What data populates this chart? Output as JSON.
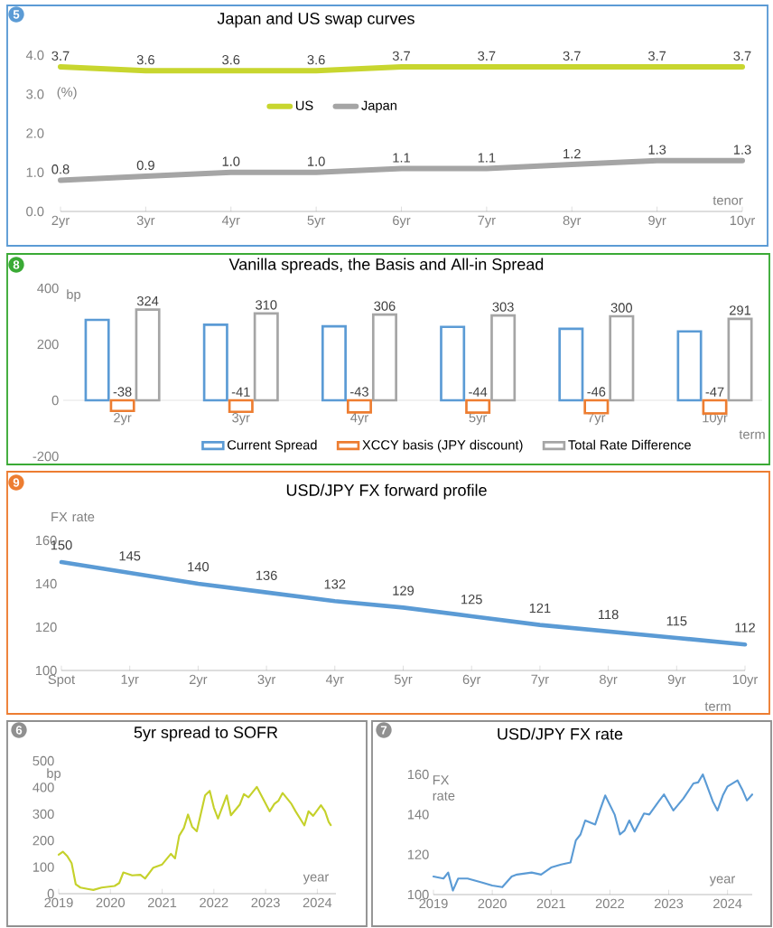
{
  "chart_data": [
    {
      "type": "line",
      "title": "Japan and US swap curves",
      "xlabel": "tenor",
      "ylabel": "(%)",
      "categories": [
        "2yr",
        "3yr",
        "4yr",
        "5yr",
        "6yr",
        "7yr",
        "8yr",
        "9yr",
        "10yr"
      ],
      "series": [
        {
          "name": "US",
          "color": "#c8d62f",
          "values": [
            3.7,
            3.6,
            3.6,
            3.6,
            3.7,
            3.7,
            3.7,
            3.7,
            3.7
          ],
          "value_labels": [
            "3.7",
            "3.6",
            "3.6",
            "3.6",
            "3.7",
            "3.7",
            "3.7",
            "3.7",
            "3.7"
          ]
        },
        {
          "name": "Japan",
          "color": "#a5a5a5",
          "values": [
            0.8,
            0.9,
            1.0,
            1.0,
            1.1,
            1.1,
            1.2,
            1.3,
            1.3
          ],
          "value_labels": [
            "0.8",
            "0.9",
            "1.0",
            "1.0",
            "1.1",
            "1.1",
            "1.2",
            "1.3",
            "1.3"
          ]
        }
      ],
      "ylim": [
        0,
        4
      ],
      "yticks": [
        {
          "value": 0,
          "label": "0.0"
        },
        {
          "value": 1,
          "label": "1.0"
        },
        {
          "value": 2,
          "label": "2.0"
        },
        {
          "value": 3,
          "label": "3.0"
        },
        {
          "value": 4,
          "label": "4.0"
        }
      ],
      "legend": "top",
      "annotations": [
        "5"
      ]
    },
    {
      "type": "bar",
      "title": "Vanilla spreads, the Basis and All-in Spread",
      "xlabel": "term",
      "ylabel": "bp",
      "categories": [
        "2yr",
        "3yr",
        "4yr",
        "5yr",
        "7yr",
        "10yr"
      ],
      "series": [
        {
          "name": "Current Spread",
          "color": "#5b9bd5",
          "values": [
            287,
            270,
            264,
            262,
            255,
            246
          ]
        },
        {
          "name": "XCCY basis (JPY discount)",
          "color": "#ed7d31",
          "values": [
            -38,
            -41,
            -43,
            -44,
            -46,
            -47
          ],
          "value_labels": [
            "-38",
            "-41",
            "-43",
            "-44",
            "-46",
            "-47"
          ]
        },
        {
          "name": "Total Rate Difference",
          "color": "#a5a5a5",
          "values": [
            324,
            310,
            306,
            303,
            300,
            291
          ],
          "value_labels": [
            "324",
            "310",
            "306",
            "303",
            "300",
            "291"
          ]
        }
      ],
      "ylim": [
        -200,
        400
      ],
      "yticks": [
        -200,
        0,
        200,
        400
      ],
      "legend": "bottom",
      "annotations": [
        "8"
      ]
    },
    {
      "type": "line",
      "title": "USD/JPY FX forward profile",
      "xlabel": "term",
      "ylabel": "FX rate",
      "categories": [
        "Spot",
        "1yr",
        "2yr",
        "3yr",
        "4yr",
        "5yr",
        "6yr",
        "7yr",
        "8yr",
        "9yr",
        "10yr"
      ],
      "color": "#5b9bd5",
      "values": [
        150,
        145,
        140,
        136,
        132,
        129,
        125,
        121,
        118,
        115,
        112
      ],
      "ylim": [
        100,
        160
      ],
      "yticks": [
        100,
        120,
        140,
        160
      ],
      "data_labels": true,
      "annotations": [
        "9"
      ]
    },
    {
      "type": "line",
      "title": "5yr spread to SOFR",
      "xlabel": "year",
      "ylabel": "bp",
      "color": "#c5d12b",
      "x": [
        "2019-01",
        "2019-02",
        "2019-03",
        "2019-04",
        "2019-05",
        "2019-06",
        "2019-08",
        "2019-09",
        "2019-11",
        "2020-02",
        "2020-03",
        "2020-04",
        "2020-06",
        "2020-08",
        "2020-09",
        "2020-11",
        "2021-01",
        "2021-03",
        "2021-04",
        "2021-05",
        "2021-06",
        "2021-07",
        "2021-08",
        "2021-09",
        "2021-11",
        "2021-12",
        "2022-01",
        "2022-02",
        "2022-04",
        "2022-05",
        "2022-07",
        "2022-08",
        "2022-09",
        "2022-11",
        "2023-02",
        "2023-03",
        "2023-04",
        "2023-05",
        "2023-07",
        "2023-08",
        "2023-10",
        "2023-11",
        "2023-12",
        "2024-01-25",
        "2024-02-25",
        "2024-03-20",
        "2024-04-05"
      ],
      "values": [
        147,
        158,
        140,
        115,
        35,
        23,
        17,
        14,
        23,
        29,
        40,
        80,
        69,
        71,
        57,
        98,
        110,
        150,
        133,
        218,
        247,
        298,
        252,
        235,
        370,
        387,
        324,
        283,
        370,
        295,
        335,
        375,
        363,
        402,
        310,
        338,
        350,
        379,
        338,
        310,
        257,
        310,
        293,
        333,
        310,
        270,
        258
      ],
      "xlim": [
        "2019-01-01",
        "2024-05-11"
      ],
      "xticks": [
        "2019",
        "2020",
        "2021",
        "2022",
        "2023",
        "2024"
      ],
      "ylim": [
        0,
        500
      ],
      "yticks": [
        0,
        100,
        200,
        300,
        400,
        500
      ],
      "annotations": [
        "6"
      ]
    },
    {
      "type": "line",
      "title": "USD/JPY FX rate",
      "xlabel": "year",
      "ylabel": "FX rate",
      "color": "#5b9bd5",
      "x": [
        "2019-01",
        "2019-03",
        "2019-04",
        "2019-05",
        "2019-06",
        "2019-08",
        "2019-11",
        "2020-01",
        "2020-03",
        "2020-05",
        "2020-06",
        "2020-09",
        "2020-11",
        "2021-01",
        "2021-03",
        "2021-05",
        "2021-06",
        "2021-07",
        "2021-08",
        "2021-10",
        "2021-11",
        "2021-12",
        "2022-02",
        "2022-03",
        "2022-04",
        "2022-05",
        "2022-06",
        "2022-08",
        "2022-09",
        "2022-11",
        "2022-12",
        "2023-02",
        "2023-04",
        "2023-06",
        "2023-07",
        "2023-08",
        "2023-10",
        "2023-11",
        "2023-12",
        "2024-01",
        "2024-03",
        "2024-04",
        "2024-05",
        "2024-06"
      ],
      "values": [
        109,
        108,
        111,
        102,
        108,
        108,
        106,
        104.5,
        103.7,
        109,
        110,
        111,
        110,
        113.5,
        115,
        116,
        127,
        130,
        137,
        135,
        142,
        149.5,
        140,
        130,
        132,
        137,
        131.5,
        140.5,
        140,
        146.5,
        150,
        142,
        148,
        155.5,
        156,
        160,
        146.5,
        142,
        149.5,
        154,
        157,
        152.5,
        147,
        150
      ],
      "xlim": [
        "2019-01-01",
        "2024-06-01"
      ],
      "xticks": [
        "2019",
        "2020",
        "2021",
        "2022",
        "2023",
        "2024"
      ],
      "ylim": [
        100,
        160
      ],
      "yticks": [
        100,
        120,
        140,
        160
      ],
      "annotations": [
        "7"
      ]
    }
  ]
}
